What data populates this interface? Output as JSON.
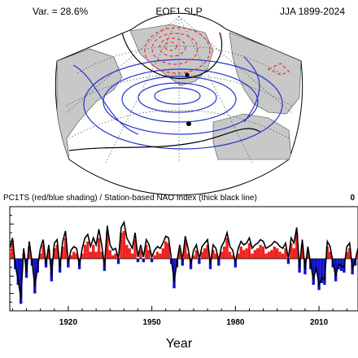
{
  "header": {
    "variance_text": "Var. = 28.6%",
    "title": "EOF1 SLP",
    "season_period": "JJA 1899-2024"
  },
  "colors": {
    "positive_shading": "#ee2222",
    "negative_shading": "#1111cc",
    "positive_contour": "#ff3333",
    "negative_contour": "#2233cc",
    "land": "#c8c8c8",
    "index_line": "#000000"
  },
  "chart_data": [
    {
      "type": "map",
      "title": "EOF1 SLP",
      "projection": "polar sector, North Atlantic",
      "contours": {
        "positive": "red dashed lobe over Greenland / Arctic",
        "negative": "blue solid lobe centred over the mid-latitude North Atlantic"
      },
      "grid": true
    },
    {
      "type": "area",
      "title": "PC1TS (red/blue shading) / Station-based NAO Index (thick black line)",
      "corner_label": "0",
      "xlabel": "Year",
      "ylabel": "",
      "xlim": [
        1899,
        2024
      ],
      "ylim": [
        -3,
        3
      ],
      "x_ticks": [
        1920,
        1950,
        1980,
        2010
      ],
      "grid": false,
      "series": [
        {
          "values": [
            0.4,
            0.9,
            -0.6,
            -1.5,
            -2.6,
            0.3,
            -1.1,
            0.7,
            -0.4,
            -2.0,
            -0.8,
            0.3,
            0.8,
            -0.5,
            0.5,
            -1.3,
            0.6,
            0.8,
            -0.8,
            0.7,
            1.2,
            -0.5,
            0.2,
            0.4,
            0.3,
            -0.6,
            0.3,
            0.8,
            1.0,
            0.4,
            0.8,
            0.4,
            1.2,
            0.4,
            -0.7,
            1.5,
            0.5,
            0.2,
            0.3,
            -0.3,
            1.5,
            1.6,
            0.8,
            0.6,
            0.3,
            1.1,
            -0.2,
            0.5,
            -0.2,
            0.8,
            0.5,
            -0.2,
            0.2,
            0.4,
            0.3,
            0.6,
            1.0,
            0.9,
            -0.3,
            -1.7,
            -0.5,
            0.5,
            -0.4,
            1.0,
            0.3,
            -0.6,
            0.2,
            0.5,
            -0.3,
            0.4,
            0.6,
            0.8,
            -0.6,
            0.5,
            0.3,
            -0.4,
            0.4,
            0.7,
            1.2,
            0.4,
            0.2,
            -0.5,
            0.3,
            0.7,
            0.5,
            0.6,
            0.9,
            0.3,
            0.5,
            0.6,
            0.8,
            0.7,
            0.3,
            0.4,
            0.5,
            0.7,
            0.6,
            0.4,
            0.3,
            0.6,
            -0.3,
            0.9,
            0.6,
            1.5,
            -0.8,
            0.8,
            -0.9,
            0.4,
            -0.6,
            -1.5,
            -0.8,
            -1.8,
            -1.4,
            -1.5,
            0.7,
            0.4,
            -0.5,
            -1.3,
            -0.6,
            -0.7,
            -0.8,
            0.4,
            0.6,
            -0.9,
            -0.4,
            0.3
          ]
        },
        {
          "values": [
            0.6,
            1.2,
            -0.4,
            -1.2,
            -2.3,
            0.6,
            -0.8,
            1.0,
            -0.2,
            -1.6,
            -0.5,
            0.6,
            1.1,
            -0.3,
            0.8,
            -1.0,
            0.9,
            1.1,
            -0.5,
            1.0,
            1.6,
            -0.2,
            0.5,
            0.7,
            0.6,
            -0.4,
            0.6,
            1.2,
            1.4,
            0.7,
            1.2,
            0.8,
            1.7,
            0.8,
            -0.4,
            1.9,
            0.8,
            0.5,
            0.6,
            0.0,
            1.8,
            2.1,
            1.2,
            0.9,
            0.6,
            1.5,
            0.1,
            0.8,
            0.1,
            1.1,
            0.8,
            0.1,
            0.5,
            0.7,
            0.6,
            0.9,
            1.3,
            1.2,
            0.0,
            -1.3,
            -0.2,
            0.8,
            -0.1,
            1.3,
            0.6,
            -0.3,
            0.5,
            0.8,
            0.0,
            0.7,
            0.9,
            1.1,
            -0.3,
            0.8,
            0.6,
            -0.1,
            0.7,
            1.0,
            1.5,
            0.7,
            0.5,
            -0.2,
            0.6,
            1.0,
            0.8,
            0.9,
            1.2,
            0.6,
            0.8,
            0.9,
            1.1,
            1.0,
            0.6,
            0.7,
            0.8,
            1.0,
            0.9,
            0.7,
            0.6,
            0.9,
            0.0,
            1.2,
            0.9,
            1.8,
            -0.5,
            1.1,
            -0.6,
            0.7,
            -0.3,
            -1.2,
            -0.5,
            -1.5,
            -1.1,
            -1.2,
            1.0,
            0.7,
            -0.2,
            -1.0,
            -0.3,
            -0.4,
            -0.5,
            0.7,
            0.9,
            -0.6,
            -0.1,
            0.6
          ]
        }
      ]
    }
  ]
}
